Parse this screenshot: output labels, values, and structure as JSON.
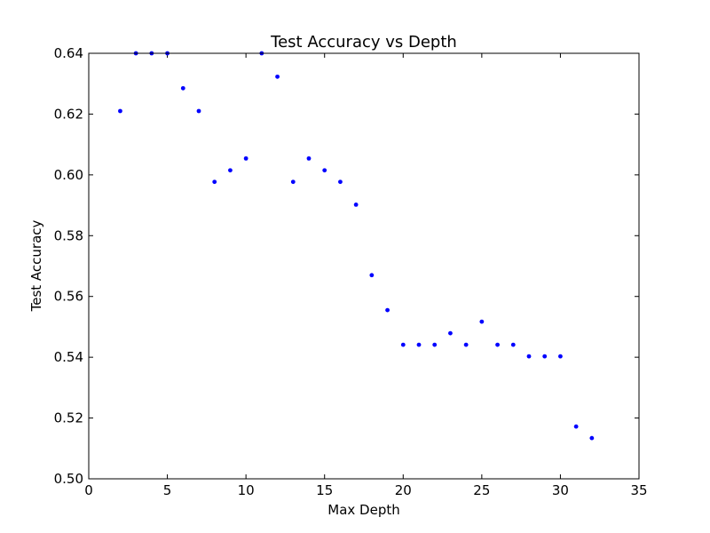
{
  "chart_data": {
    "type": "scatter",
    "title": "Test Accuracy vs Depth",
    "xlabel": "Max Depth",
    "ylabel": "Test Accuracy",
    "xlim": [
      0,
      35
    ],
    "ylim": [
      0.5,
      0.64
    ],
    "xticks": [
      0,
      5,
      10,
      15,
      20,
      25,
      30,
      35
    ],
    "yticks": [
      0.5,
      0.52,
      0.54,
      0.56,
      0.58,
      0.6,
      0.62,
      0.64
    ],
    "ytick_labels": [
      "0.50",
      "0.52",
      "0.54",
      "0.56",
      "0.58",
      "0.60",
      "0.62",
      "0.64"
    ],
    "grid": false,
    "marker_color": "#0000ff",
    "points": [
      {
        "x": 2,
        "y": 0.621
      },
      {
        "x": 3,
        "y": 0.64
      },
      {
        "x": 4,
        "y": 0.64
      },
      {
        "x": 5,
        "y": 0.64
      },
      {
        "x": 6,
        "y": 0.6285
      },
      {
        "x": 7,
        "y": 0.621
      },
      {
        "x": 8,
        "y": 0.5977
      },
      {
        "x": 9,
        "y": 0.6015
      },
      {
        "x": 10,
        "y": 0.6054
      },
      {
        "x": 11,
        "y": 0.64
      },
      {
        "x": 12,
        "y": 0.6323
      },
      {
        "x": 13,
        "y": 0.5977
      },
      {
        "x": 14,
        "y": 0.6054
      },
      {
        "x": 15,
        "y": 0.6015
      },
      {
        "x": 16,
        "y": 0.5977
      },
      {
        "x": 17,
        "y": 0.5902
      },
      {
        "x": 18,
        "y": 0.567
      },
      {
        "x": 19,
        "y": 0.5555
      },
      {
        "x": 20,
        "y": 0.5441
      },
      {
        "x": 21,
        "y": 0.5441
      },
      {
        "x": 22,
        "y": 0.5441
      },
      {
        "x": 23,
        "y": 0.5479
      },
      {
        "x": 24,
        "y": 0.5441
      },
      {
        "x": 25,
        "y": 0.5517
      },
      {
        "x": 26,
        "y": 0.5441
      },
      {
        "x": 27,
        "y": 0.5441
      },
      {
        "x": 28,
        "y": 0.5403
      },
      {
        "x": 29,
        "y": 0.5403
      },
      {
        "x": 30,
        "y": 0.5403
      },
      {
        "x": 31,
        "y": 0.5172
      },
      {
        "x": 32,
        "y": 0.5134
      }
    ]
  }
}
